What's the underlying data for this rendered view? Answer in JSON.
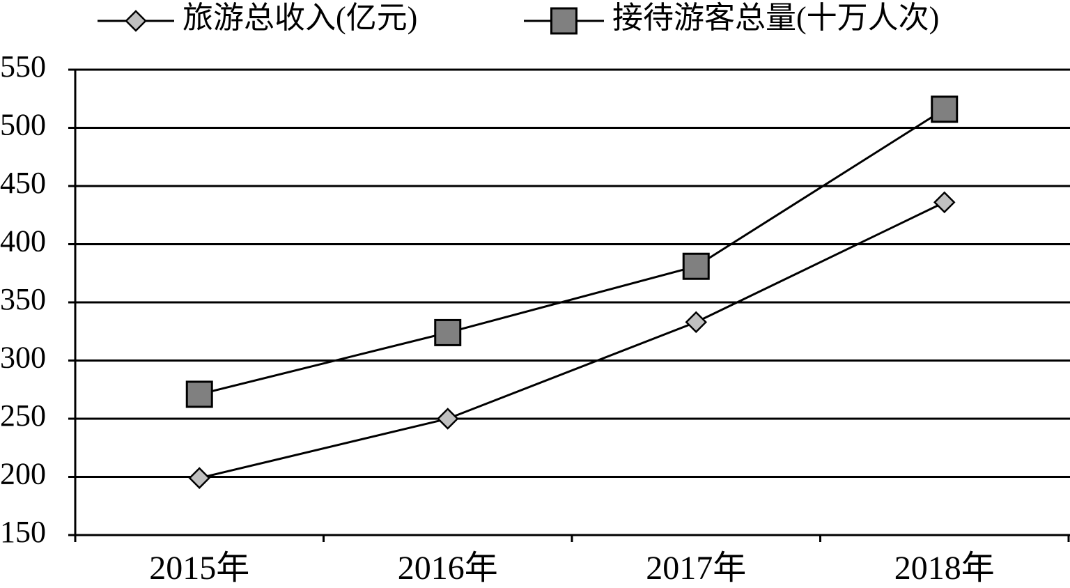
{
  "chart_data": {
    "type": "line",
    "categories": [
      "2015年",
      "2016年",
      "2017年",
      "2018年"
    ],
    "series": [
      {
        "name": "旅游总收入(亿元)",
        "color": "#c0c0c0",
        "marker": "diamond",
        "values": [
          199,
          250,
          333,
          436
        ]
      },
      {
        "name": "接待游客总量(十万人次)",
        "color": "#808080",
        "marker": "square",
        "values": [
          271,
          324,
          381,
          516
        ]
      }
    ],
    "ylim": [
      150,
      550
    ],
    "yticks": [
      150,
      200,
      250,
      300,
      350,
      400,
      450,
      500,
      550
    ],
    "grid": true
  }
}
